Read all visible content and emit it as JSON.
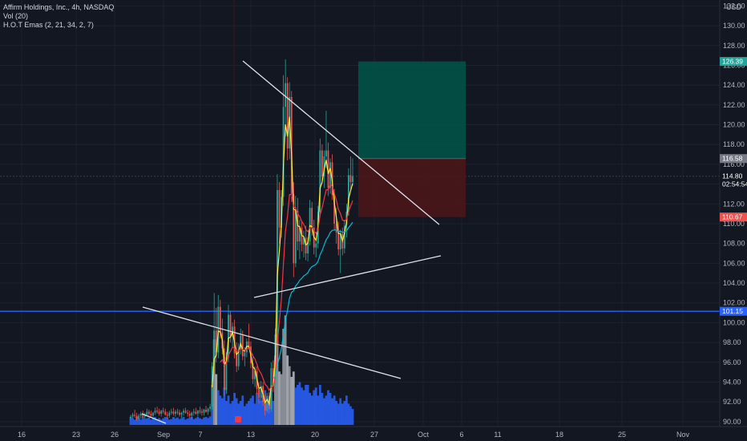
{
  "legend": {
    "title": "Affirm Holdings, Inc., 4h, NASDAQ",
    "vol": "Vol (20)",
    "emas": "H.O.T Emas (2, 21, 34, 2, 7)"
  },
  "currency": "USD",
  "colors": {
    "bg": "#131722",
    "grid": "#1e222d",
    "up": "#26a69a",
    "down": "#ef5350",
    "ema_fast": "#ffeb3b",
    "ema_mid": "#f23645",
    "ema_slow": "#00bcd4",
    "vol_up": "#2962ff",
    "vol_down": "#b0b3b8",
    "hline": "#2962ff",
    "trend": "#e0e3eb",
    "target": "#00564a",
    "stop": "#4a1518"
  },
  "chart_data": {
    "type": "candlestick",
    "title": "Affirm Holdings, Inc., 4h, NASDAQ",
    "x_ticks": [
      "16",
      "23",
      "26",
      "Sep",
      "7",
      "13",
      "20",
      "27",
      "Oct",
      "6",
      "11",
      "18",
      "25",
      "Nov"
    ],
    "y_ticks": [
      90,
      92,
      94,
      96,
      98,
      100,
      102,
      104,
      106,
      108,
      110,
      112,
      114,
      116,
      118,
      120,
      122,
      124,
      126,
      128,
      130,
      132
    ],
    "ylim": [
      89.5,
      132.6
    ],
    "price_tags": [
      {
        "label": "126.39",
        "value": 126.39,
        "color": "#26a69a"
      },
      {
        "label": "116.58",
        "value": 116.58,
        "color": "#787b86"
      },
      {
        "label": "114.80",
        "sub": "02:54:54",
        "value": 114.8,
        "color": "#131722"
      },
      {
        "label": "110.67",
        "value": 110.67,
        "color": "#ef5350"
      },
      {
        "label": "101.15",
        "value": 101.15,
        "color": "#2962ff"
      }
    ],
    "horizontal_line": 101.15,
    "position": {
      "entry": 116.58,
      "target": 126.39,
      "stop": 110.67
    },
    "candles": [
      [
        90.4,
        90.7,
        90.2,
        90.5
      ],
      [
        90.5,
        90.9,
        90.3,
        90.7
      ],
      [
        90.7,
        91.2,
        90.4,
        90.6
      ],
      [
        90.6,
        90.9,
        90.1,
        90.3
      ],
      [
        90.3,
        90.8,
        90.1,
        90.6
      ],
      [
        90.6,
        91.0,
        90.3,
        90.8
      ],
      [
        90.8,
        91.1,
        90.4,
        90.5
      ],
      [
        90.5,
        90.9,
        90.2,
        90.7
      ],
      [
        90.7,
        91.3,
        90.5,
        91.0
      ],
      [
        91.0,
        91.2,
        90.6,
        90.8
      ],
      [
        90.8,
        91.1,
        90.4,
        90.6
      ],
      [
        90.6,
        91.0,
        90.3,
        90.9
      ],
      [
        90.9,
        91.4,
        90.7,
        91.1
      ],
      [
        91.1,
        91.5,
        90.8,
        91.0
      ],
      [
        91.0,
        91.3,
        90.6,
        90.8
      ],
      [
        90.8,
        91.2,
        90.5,
        91.1
      ],
      [
        91.1,
        91.4,
        90.8,
        91.0
      ],
      [
        91.0,
        91.3,
        90.6,
        90.7
      ],
      [
        90.7,
        91.0,
        90.3,
        90.6
      ],
      [
        90.6,
        91.1,
        90.4,
        90.9
      ],
      [
        90.9,
        91.3,
        90.7,
        91.0
      ],
      [
        91.0,
        91.4,
        90.6,
        90.8
      ],
      [
        90.8,
        91.2,
        90.5,
        91.0
      ],
      [
        91.0,
        91.3,
        90.7,
        90.9
      ],
      [
        90.9,
        91.2,
        90.5,
        90.7
      ],
      [
        90.7,
        91.0,
        90.4,
        90.9
      ],
      [
        90.9,
        91.3,
        90.6,
        91.1
      ],
      [
        91.1,
        91.4,
        90.8,
        90.9
      ],
      [
        90.9,
        91.2,
        90.5,
        90.8
      ],
      [
        90.8,
        91.1,
        90.4,
        90.6
      ],
      [
        90.6,
        91.0,
        90.2,
        90.9
      ],
      [
        90.9,
        91.3,
        90.6,
        91.0
      ],
      [
        91.0,
        91.4,
        90.7,
        90.8
      ],
      [
        90.8,
        91.2,
        90.5,
        91.1
      ],
      [
        91.1,
        91.5,
        90.8,
        91.0
      ],
      [
        91.0,
        91.3,
        90.6,
        90.9
      ],
      [
        90.9,
        91.3,
        90.6,
        91.2
      ],
      [
        91.2,
        91.6,
        90.9,
        91.0
      ],
      [
        91.0,
        91.4,
        90.7,
        91.3
      ],
      [
        91.3,
        91.8,
        91.0,
        91.5
      ],
      [
        91.5,
        96.0,
        91.2,
        95.6
      ],
      [
        95.6,
        103.0,
        94.8,
        99.2
      ],
      [
        99.2,
        101.5,
        96.0,
        97.0
      ],
      [
        97.0,
        102.8,
        96.4,
        101.6
      ],
      [
        101.6,
        102.3,
        98.4,
        99.0
      ],
      [
        99.0,
        100.4,
        96.8,
        97.4
      ],
      [
        97.4,
        98.2,
        92.6,
        93.2
      ],
      [
        93.2,
        97.0,
        92.8,
        96.5
      ],
      [
        96.5,
        101.8,
        96.0,
        100.8
      ],
      [
        100.8,
        101.2,
        98.0,
        98.6
      ],
      [
        98.6,
        100.0,
        97.5,
        99.6
      ],
      [
        99.6,
        100.3,
        96.4,
        96.9
      ],
      [
        96.9,
        98.0,
        95.0,
        95.6
      ],
      [
        95.6,
        97.9,
        95.2,
        97.3
      ],
      [
        97.3,
        99.4,
        96.8,
        98.7
      ],
      [
        98.7,
        99.2,
        96.2,
        96.6
      ],
      [
        96.6,
        97.5,
        95.6,
        97.0
      ],
      [
        97.0,
        98.4,
        96.5,
        98.1
      ],
      [
        98.1,
        99.9,
        97.3,
        97.6
      ],
      [
        97.6,
        98.1,
        95.4,
        95.9
      ],
      [
        95.9,
        96.8,
        93.8,
        94.3
      ],
      [
        94.3,
        95.6,
        93.5,
        95.1
      ],
      [
        95.1,
        95.6,
        92.8,
        93.3
      ],
      [
        93.3,
        94.0,
        91.8,
        92.4
      ],
      [
        92.4,
        94.1,
        92.0,
        93.6
      ],
      [
        93.6,
        94.0,
        91.6,
        92.0
      ],
      [
        92.0,
        92.8,
        90.6,
        91.1
      ],
      [
        91.1,
        92.9,
        90.9,
        92.6
      ],
      [
        92.6,
        93.0,
        90.8,
        91.3
      ],
      [
        91.3,
        96.0,
        91.0,
        95.4
      ],
      [
        95.4,
        96.2,
        93.0,
        93.6
      ],
      [
        93.6,
        99.4,
        93.2,
        98.8
      ],
      [
        98.8,
        115.0,
        98.0,
        113.4
      ],
      [
        113.4,
        114.2,
        108.0,
        109.6
      ],
      [
        109.6,
        113.4,
        108.6,
        112.7
      ],
      [
        112.7,
        125.0,
        111.8,
        121.8
      ],
      [
        121.8,
        126.6,
        118.8,
        124.2
      ],
      [
        124.2,
        124.8,
        116.4,
        117.6
      ],
      [
        117.6,
        124.3,
        116.5,
        122.8
      ],
      [
        122.8,
        123.4,
        112.2,
        113.0
      ],
      [
        113.0,
        114.2,
        104.6,
        106.0
      ],
      [
        106.0,
        112.8,
        105.6,
        111.3
      ],
      [
        111.3,
        112.6,
        107.3,
        108.2
      ],
      [
        108.2,
        110.4,
        106.4,
        109.6
      ],
      [
        109.6,
        110.3,
        107.2,
        107.9
      ],
      [
        107.9,
        109.3,
        106.6,
        108.6
      ],
      [
        108.6,
        109.8,
        106.3,
        107.0
      ],
      [
        107.0,
        108.6,
        106.2,
        108.2
      ],
      [
        108.2,
        112.4,
        107.8,
        111.6
      ],
      [
        111.6,
        112.2,
        108.8,
        109.6
      ],
      [
        109.6,
        110.4,
        106.9,
        107.6
      ],
      [
        107.6,
        108.4,
        106.6,
        108.0
      ],
      [
        108.0,
        111.8,
        107.5,
        111.2
      ],
      [
        111.2,
        118.6,
        110.6,
        117.4
      ],
      [
        117.4,
        118.0,
        114.0,
        114.8
      ],
      [
        114.8,
        117.4,
        113.6,
        116.8
      ],
      [
        116.8,
        121.4,
        115.6,
        117.4
      ],
      [
        117.4,
        118.2,
        112.8,
        113.6
      ],
      [
        113.6,
        116.6,
        113.0,
        116.2
      ],
      [
        116.2,
        117.0,
        112.4,
        112.9
      ],
      [
        112.9,
        113.5,
        109.3,
        110.0
      ],
      [
        110.0,
        111.6,
        108.0,
        109.1
      ],
      [
        109.1,
        110.2,
        106.8,
        107.4
      ],
      [
        107.4,
        109.4,
        105.0,
        109.0
      ],
      [
        109.0,
        109.6,
        106.8,
        107.5
      ],
      [
        107.5,
        110.4,
        107.0,
        109.8
      ],
      [
        109.8,
        112.0,
        108.6,
        111.2
      ],
      [
        111.2,
        115.6,
        110.8,
        114.9
      ],
      [
        114.9,
        116.8,
        113.4,
        114.2
      ],
      [
        114.2,
        116.6,
        113.8,
        114.8
      ]
    ],
    "volume": [
      0.3,
      0.25,
      0.2,
      0.3,
      0.25,
      0.2,
      0.3,
      0.22,
      0.25,
      0.28,
      0.2,
      0.24,
      0.3,
      0.22,
      0.26,
      0.2,
      0.25,
      0.3,
      0.28,
      0.2,
      0.22,
      0.3,
      0.25,
      0.28,
      0.22,
      0.26,
      0.3,
      0.2,
      0.24,
      0.28,
      0.3,
      0.22,
      0.26,
      0.3,
      0.25,
      0.22,
      0.28,
      0.3,
      0.26,
      0.32,
      1.5,
      3.2,
      1.9,
      1.3,
      1.1,
      1.0,
      1.4,
      0.9,
      1.1,
      0.8,
      0.9,
      1.2,
      1.0,
      0.8,
      0.9,
      1.1,
      0.7,
      0.8,
      0.9,
      1.0,
      1.1,
      0.8,
      1.2,
      1.0,
      0.9,
      1.1,
      1.3,
      0.8,
      1.0,
      1.4,
      0.9,
      2.6,
      3.4,
      2.0,
      1.9,
      3.6,
      4.1,
      2.6,
      2.2,
      1.8,
      2.0,
      1.4,
      1.5,
      1.6,
      1.4,
      1.3,
      1.5,
      1.5,
      1.2,
      1.1,
      1.3,
      1.4,
      1.1,
      1.5,
      1.2,
      1.0,
      1.1,
      1.3,
      1.2,
      1.0,
      1.1,
      0.9,
      0.8,
      1.0,
      0.8,
      0.9,
      1.1,
      0.8,
      0.7,
      0.6
    ],
    "trendlines": [
      {
        "from": [
          75.6,
          126.8
        ],
        "to": [
          187.7,
          109.7
        ]
      },
      {
        "from": [
          11.6,
          101.3
        ],
        "to": [
          188.2,
          93.8
        ]
      },
      {
        "from": [
          11.5,
          90.1
        ],
        "to": [
          25.8,
          88.7
        ]
      },
      {
        "from": [
          77.3,
          102.4
        ],
        "to": [
          187.9,
          106.6
        ]
      }
    ]
  }
}
